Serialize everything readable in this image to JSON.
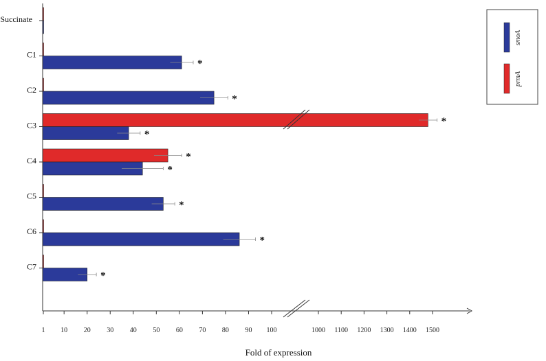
{
  "chart_data": {
    "type": "bar",
    "orientation": "horizontal",
    "xlabel": "Fold of expression",
    "categories": [
      "Succinate",
      "C1",
      "C2",
      "C3",
      "C4",
      "C5",
      "C6",
      "C7"
    ],
    "series": [
      {
        "name": "smoA",
        "color": "#2b3a9a",
        "values": [
          1,
          61,
          75,
          38,
          44,
          53,
          86,
          20
        ],
        "errors": [
          0.3,
          5,
          6,
          5,
          9,
          5,
          7,
          4
        ],
        "significant": [
          false,
          true,
          true,
          true,
          true,
          true,
          true,
          true
        ]
      },
      {
        "name": "prmA",
        "color": "#e02a2a",
        "values": [
          1,
          1,
          0.5,
          1480,
          55,
          0.5,
          0.5,
          0.3
        ],
        "errors": [
          0.2,
          0.2,
          0.1,
          40,
          6,
          0.1,
          0.1,
          0.1
        ],
        "significant": [
          false,
          false,
          false,
          true,
          true,
          false,
          false,
          false
        ]
      }
    ],
    "x_ticks_left": [
      1,
      10,
      20,
      30,
      40,
      50,
      60,
      70,
      80,
      90,
      100
    ],
    "x_ticks_right": [
      1000,
      1100,
      1200,
      1300,
      1400,
      1500
    ],
    "axis_break": true,
    "significance_marker": "*",
    "grid": false,
    "legend_position": "top-right"
  }
}
